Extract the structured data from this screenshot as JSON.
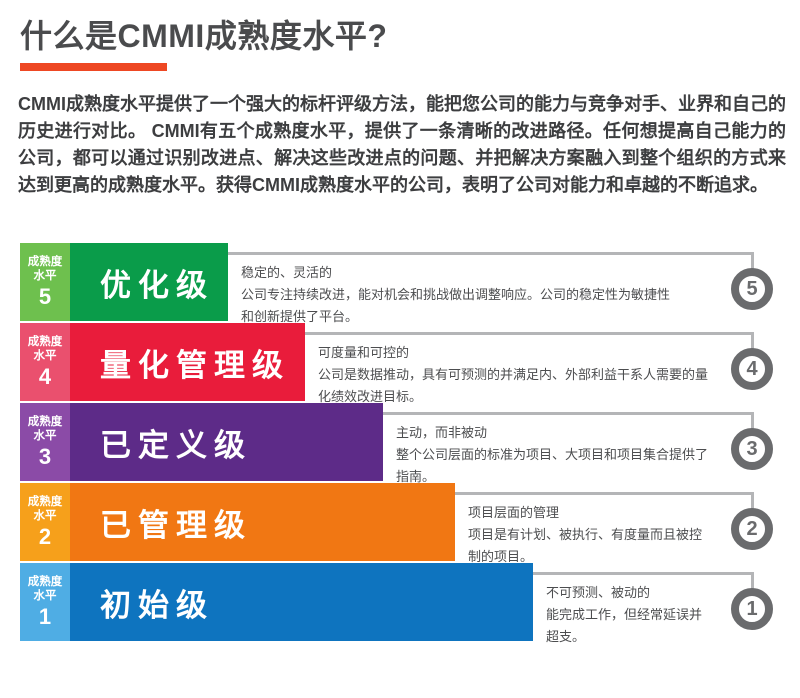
{
  "header": {
    "title": "什么是CMMI成熟度水平?",
    "underline_color": "#ee4823",
    "intro": "CMMI成熟度水平提供了一个强大的标杆评级方法，能把您公司的能力与竞争对手、业界和自己的历史进行对比。 CMMI有五个成熟度水平，提供了一条清晰的改进路径。任何想提高自己能力的公司，都可以通过识别改进点、解决这些改进点的问题、并把解决方案融入到整个组织的方式来达到更高的成熟度水平。获得CMMI成熟度水平的公司，表明了公司对能力和卓越的不断追求。"
  },
  "chart_data": {
    "type": "bar",
    "orientation": "horizontal-staircase",
    "row_caption": {
      "line1": "成熟度",
      "line2": "水平"
    },
    "connector_color": "#b4b5b7",
    "badge_color": "#6a6b6d",
    "levels": [
      {
        "number": "5",
        "name": "优化级",
        "description": "稳定的、灵活的\n公司专注持续改进，能对机会和挑战做出调整响应。公司的稳定性为敏捷性\n和创新提供了平台。",
        "label_color": "#6ec04e",
        "bar_color": "#0a9c4a",
        "relative_bar_length": 1
      },
      {
        "number": "4",
        "name": "量化管理级",
        "description": "可度量和可控的\n公司是数据推动，具有可预测的并满足内、外部利益干系人需要的量\n化绩效改进目标。",
        "label_color": "#ea506e",
        "bar_color": "#e91c3b",
        "relative_bar_length": 2
      },
      {
        "number": "3",
        "name": "已定义级",
        "description": "主动，而非被动\n整个公司层面的标准为项目、大项目和项目集合提供了\n指南。",
        "label_color": "#8b4ba7",
        "bar_color": "#5d2b88",
        "relative_bar_length": 3
      },
      {
        "number": "2",
        "name": "已管理级",
        "description": "项目层面的管理\n项目是有计划、被执行、有度量而且被控\n制的项目。",
        "label_color": "#f6a01b",
        "bar_color": "#f17713",
        "relative_bar_length": 4
      },
      {
        "number": "1",
        "name": "初始级",
        "description": "不可预测、被动的\n能完成工作，但经常延误并\n超支。",
        "label_color": "#4fade4",
        "bar_color": "#0e74bf",
        "relative_bar_length": 5
      }
    ]
  }
}
